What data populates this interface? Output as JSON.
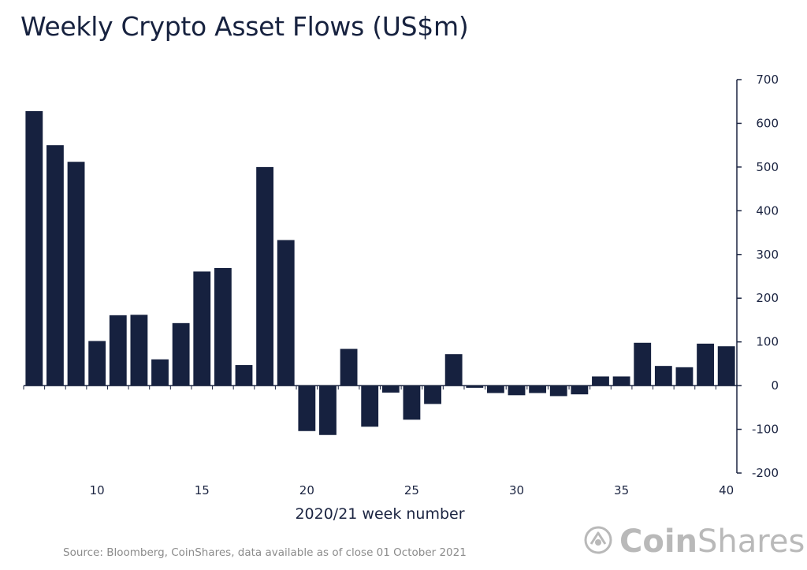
{
  "title": "Weekly Crypto Asset Flows (US$m)",
  "source": "Source: Bloomberg, CoinShares, data available as of close 01 October 2021",
  "brand": {
    "part1": "Coin",
    "part2": "Shares",
    "logo_icon": "coinshares-logo-icon"
  },
  "colors": {
    "bar": "#16213f",
    "axis": "#1b2441",
    "muted": "#b9b9b9"
  },
  "chart_data": {
    "type": "bar",
    "title": "Weekly Crypto Asset Flows (US$m)",
    "xlabel": "2020/21 week number",
    "ylabel": "",
    "x": [
      7,
      8,
      9,
      10,
      11,
      12,
      13,
      14,
      15,
      16,
      17,
      18,
      19,
      20,
      21,
      22,
      23,
      24,
      25,
      26,
      27,
      28,
      29,
      30,
      31,
      32,
      33,
      34,
      35,
      36,
      37,
      38,
      39,
      40
    ],
    "values": [
      628,
      550,
      512,
      102,
      161,
      162,
      60,
      143,
      261,
      269,
      47,
      500,
      333,
      -104,
      -113,
      84,
      -94,
      -16,
      -78,
      -42,
      72,
      -5,
      -17,
      -22,
      -17,
      -24,
      -20,
      21,
      21,
      98,
      45,
      42,
      96,
      90
    ],
    "xticks": [
      10,
      15,
      20,
      25,
      30,
      35,
      40
    ],
    "xtick_labels": [
      "10",
      "15",
      "20",
      "25",
      "30",
      "35",
      "40"
    ],
    "yticks": [
      700,
      600,
      500,
      400,
      300,
      200,
      100,
      0,
      -100,
      -200
    ],
    "ytick_labels": [
      "700",
      "600",
      "500",
      "400",
      "300",
      "200",
      "100",
      "0",
      "-100",
      "-200"
    ],
    "ylim": [
      -200,
      700
    ],
    "y_axis_side": "right",
    "grid": false,
    "legend": "none"
  }
}
